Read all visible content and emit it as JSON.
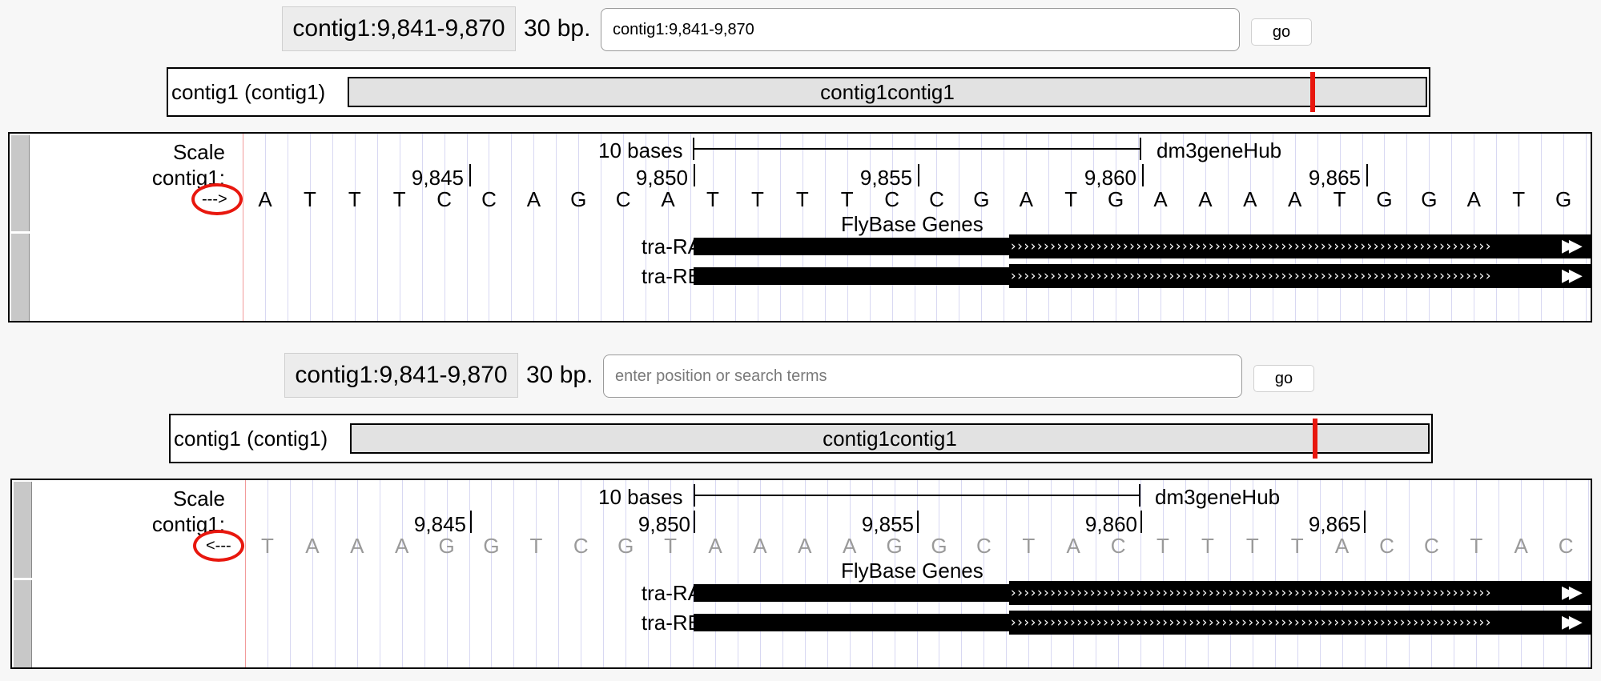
{
  "panels": [
    {
      "position_display": "contig1:9,841-9,870",
      "bp_label": "30 bp.",
      "search_value": "contig1:9,841-9,870",
      "search_placeholder": "",
      "go_label": "go",
      "ideogram": {
        "label": "contig1 (contig1)",
        "name": "contig1contig1"
      },
      "scale": {
        "row_label": "Scale",
        "bar_label": "10 bases",
        "hub_label": "dm3geneHub"
      },
      "ruler": {
        "row_label": "contig1:",
        "ticks": [
          "9,845",
          "9,850",
          "9,855",
          "9,860",
          "9,865"
        ]
      },
      "strand_toggle": "--->",
      "bases": [
        "A",
        "T",
        "T",
        "T",
        "C",
        "C",
        "A",
        "G",
        "C",
        "A",
        "T",
        "T",
        "T",
        "T",
        "C",
        "C",
        "G",
        "A",
        "T",
        "G",
        "A",
        "A",
        "A",
        "A",
        "T",
        "G",
        "G",
        "A",
        "T",
        "G"
      ],
      "track_title": "FlyBase Genes",
      "genes": [
        "tra-RA",
        "tra-RB"
      ]
    },
    {
      "position_display": "contig1:9,841-9,870",
      "bp_label": "30 bp.",
      "search_value": "",
      "search_placeholder": "enter position or search terms",
      "go_label": "go",
      "ideogram": {
        "label": "contig1 (contig1)",
        "name": "contig1contig1"
      },
      "scale": {
        "row_label": "Scale",
        "bar_label": "10 bases",
        "hub_label": "dm3geneHub"
      },
      "ruler": {
        "row_label": "contig1:",
        "ticks": [
          "9,845",
          "9,850",
          "9,855",
          "9,860",
          "9,865"
        ]
      },
      "strand_toggle": "<---",
      "bases": [
        "T",
        "A",
        "A",
        "A",
        "G",
        "G",
        "T",
        "C",
        "G",
        "T",
        "A",
        "A",
        "A",
        "A",
        "G",
        "G",
        "C",
        "T",
        "A",
        "C",
        "T",
        "T",
        "T",
        "T",
        "A",
        "C",
        "C",
        "T",
        "A",
        "C"
      ],
      "track_title": "FlyBase Genes",
      "genes": [
        "tra-RA",
        "tra-RB"
      ]
    }
  ],
  "colors": {
    "highlight": "#e8170e",
    "base_line": "#d8d8f2",
    "gene": "#000000"
  }
}
